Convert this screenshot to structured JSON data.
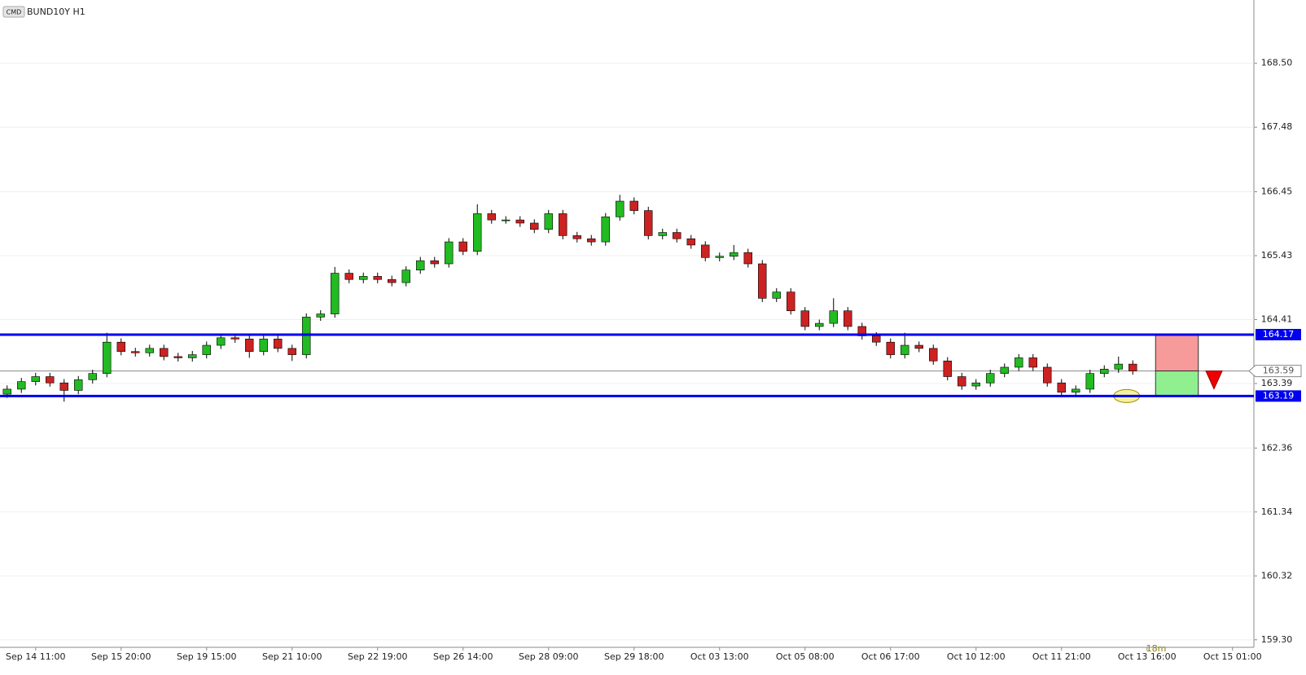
{
  "chart_data": {
    "type": "candlestick",
    "symbol_tag": "CMD",
    "title": "BUND10Y H1",
    "timer": "18m",
    "categories": [
      null,
      null,
      "Sep 14 11:00",
      null,
      null,
      null,
      null,
      null,
      "Sep 15 20:00",
      null,
      null,
      null,
      null,
      null,
      "Sep 19 15:00",
      null,
      null,
      null,
      null,
      null,
      "Sep 21 10:00",
      null,
      null,
      null,
      null,
      null,
      "Sep 22 19:00",
      null,
      null,
      null,
      null,
      null,
      "Sep 26 14:00",
      null,
      null,
      null,
      null,
      null,
      "Sep 28 09:00",
      null,
      null,
      null,
      null,
      null,
      "Sep 29 18:00",
      null,
      null,
      null,
      null,
      null,
      "Oct 03 13:00",
      null,
      null,
      null,
      null,
      null,
      "Oct 05 08:00",
      null,
      null,
      null,
      null,
      null,
      "Oct 06 17:00",
      null,
      null,
      null,
      null,
      null,
      "Oct 10 12:00",
      null,
      null,
      null,
      null,
      null,
      "Oct 11 21:00",
      null,
      null,
      null,
      null,
      null,
      "Oct 13 16:00",
      null,
      null,
      null,
      null,
      null,
      "Oct 15 01:00",
      null
    ],
    "open": [
      163.22,
      163.3,
      163.42,
      163.5,
      163.4,
      163.28,
      163.45,
      163.55,
      164.05,
      163.9,
      163.88,
      163.95,
      163.82,
      163.8,
      163.85,
      164.0,
      164.12,
      164.1,
      163.9,
      164.1,
      163.95,
      163.85,
      164.45,
      164.5,
      165.15,
      165.05,
      165.1,
      165.05,
      165.0,
      165.2,
      165.35,
      165.3,
      165.65,
      165.5,
      166.1,
      166.0,
      166.0,
      165.95,
      165.85,
      166.1,
      165.75,
      165.7,
      165.65,
      166.05,
      166.3,
      166.15,
      165.75,
      165.8,
      165.7,
      165.6,
      165.4,
      165.42,
      165.48,
      165.3,
      164.75,
      164.85,
      164.55,
      164.3,
      164.35,
      164.55,
      164.3,
      164.15,
      164.05,
      163.85,
      164.0,
      163.95,
      163.75,
      163.5,
      163.35,
      163.4,
      163.55,
      163.65,
      163.8,
      163.65,
      163.4,
      163.25,
      163.3,
      163.55,
      163.62,
      163.7,
      null,
      null,
      null,
      null,
      null,
      null,
      null,
      null
    ],
    "high": [
      163.36,
      163.48,
      163.56,
      163.56,
      163.46,
      163.51,
      163.61,
      164.2,
      164.11,
      163.96,
      164.01,
      164.01,
      163.88,
      163.91,
      164.06,
      164.18,
      164.18,
      164.16,
      164.16,
      164.16,
      164.01,
      164.51,
      164.56,
      165.25,
      165.21,
      165.16,
      165.16,
      165.11,
      165.26,
      165.41,
      165.41,
      165.71,
      165.71,
      166.25,
      166.16,
      166.06,
      166.06,
      166.01,
      166.16,
      166.16,
      165.81,
      165.76,
      166.11,
      166.4,
      166.36,
      166.21,
      165.86,
      165.86,
      165.76,
      165.66,
      165.48,
      165.6,
      165.54,
      165.36,
      164.91,
      164.91,
      164.61,
      164.41,
      164.75,
      164.61,
      164.36,
      164.21,
      164.11,
      164.2,
      164.06,
      164.01,
      163.81,
      163.56,
      163.46,
      163.61,
      163.71,
      163.86,
      163.86,
      163.71,
      163.46,
      163.36,
      163.61,
      163.68,
      163.82,
      163.76,
      null,
      null,
      null,
      null,
      null,
      null,
      null,
      null
    ],
    "low": [
      163.16,
      163.24,
      163.36,
      163.34,
      163.1,
      163.22,
      163.39,
      163.49,
      163.84,
      163.82,
      163.82,
      163.76,
      163.74,
      163.74,
      163.79,
      163.94,
      164.04,
      163.8,
      163.84,
      163.89,
      163.75,
      163.79,
      164.39,
      164.44,
      164.99,
      164.99,
      164.99,
      164.94,
      164.94,
      165.14,
      165.24,
      165.24,
      165.44,
      165.44,
      165.94,
      165.94,
      165.89,
      165.79,
      165.79,
      165.69,
      165.64,
      165.59,
      165.59,
      165.99,
      166.09,
      165.69,
      165.69,
      165.64,
      165.54,
      165.34,
      165.34,
      165.36,
      165.24,
      164.69,
      164.69,
      164.49,
      164.24,
      164.24,
      164.29,
      164.24,
      164.09,
      163.99,
      163.79,
      163.79,
      163.89,
      163.69,
      163.44,
      163.29,
      163.29,
      163.34,
      163.49,
      163.59,
      163.59,
      163.34,
      163.19,
      163.19,
      163.24,
      163.49,
      163.56,
      163.53,
      null,
      null,
      null,
      null,
      null,
      null,
      null,
      null
    ],
    "close": [
      163.3,
      163.42,
      163.5,
      163.4,
      163.28,
      163.45,
      163.55,
      164.05,
      163.9,
      163.88,
      163.95,
      163.82,
      163.8,
      163.85,
      164.0,
      164.12,
      164.1,
      163.9,
      164.1,
      163.95,
      163.85,
      164.45,
      164.5,
      165.15,
      165.05,
      165.1,
      165.05,
      165.0,
      165.2,
      165.35,
      165.3,
      165.65,
      165.5,
      166.1,
      166.0,
      166.0,
      165.95,
      165.85,
      166.1,
      165.75,
      165.7,
      165.65,
      166.05,
      166.3,
      166.15,
      165.75,
      165.8,
      165.7,
      165.6,
      165.4,
      165.42,
      165.48,
      165.3,
      164.75,
      164.85,
      164.55,
      164.3,
      164.35,
      164.55,
      164.3,
      164.15,
      164.05,
      163.85,
      164.0,
      163.95,
      163.75,
      163.5,
      163.35,
      163.4,
      163.55,
      163.65,
      163.8,
      163.65,
      163.4,
      163.25,
      163.3,
      163.55,
      163.62,
      163.7,
      163.59,
      null,
      null,
      null,
      null,
      null,
      null,
      null,
      null
    ],
    "up_color": "#22bb22",
    "down_color": "#cc2222",
    "ylim": [
      159.18,
      169.51
    ],
    "yticks": [
      {
        "value": 168.5,
        "label": "168.50"
      },
      167.48,
      166.45,
      165.43,
      164.41,
      163.39,
      162.36,
      161.34,
      {
        "value": 160.32,
        "label": "160.32"
      },
      {
        "value": 159.3,
        "label": "159.30"
      }
    ],
    "grid": true,
    "levels": [
      {
        "value": 164.17,
        "color": "#0000ee"
      },
      {
        "value": 163.19,
        "color": "#0000ee"
      }
    ],
    "last_price": 163.59
  }
}
